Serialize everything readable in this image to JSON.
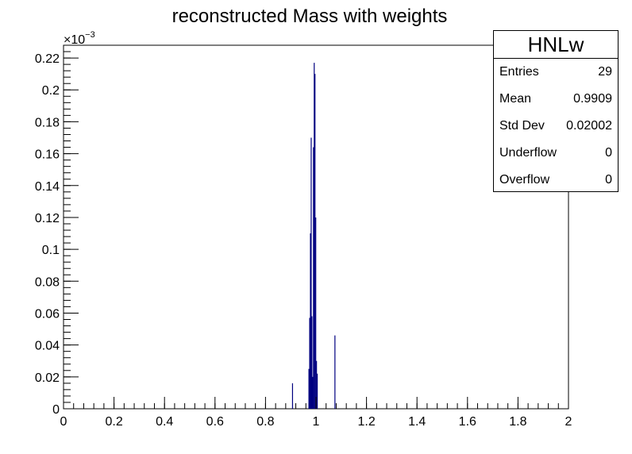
{
  "chart_data": {
    "type": "bar",
    "title": "reconstructed Mass with weights",
    "xlabel": "",
    "ylabel": "",
    "y_exponent_label": "×10",
    "y_exponent_power": "−3",
    "xlim": [
      0,
      2
    ],
    "ylim": [
      0,
      0.228
    ],
    "bar_color": "#000080",
    "x_ticks": [
      0,
      0.2,
      0.4,
      0.6,
      0.8,
      1,
      1.2,
      1.4,
      1.6,
      1.8,
      2
    ],
    "x_tick_labels": [
      "0",
      "0.2",
      "0.4",
      "0.6",
      "0.8",
      "1",
      "1.2",
      "1.4",
      "1.6",
      "1.8",
      "2"
    ],
    "y_ticks": [
      0,
      0.02,
      0.04,
      0.06,
      0.08,
      0.1,
      0.12,
      0.14,
      0.16,
      0.18,
      0.2,
      0.22
    ],
    "y_tick_labels": [
      "0",
      "0.02",
      "0.04",
      "0.06",
      "0.08",
      "0.1",
      "0.12",
      "0.14",
      "0.16",
      "0.18",
      "0.2",
      "0.22"
    ],
    "points": [
      {
        "x": 0.907,
        "y": 0.016
      },
      {
        "x": 0.972,
        "y": 0.025
      },
      {
        "x": 0.975,
        "y": 0.057
      },
      {
        "x": 0.978,
        "y": 0.11
      },
      {
        "x": 0.981,
        "y": 0.17
      },
      {
        "x": 0.984,
        "y": 0.058
      },
      {
        "x": 0.987,
        "y": 0.02
      },
      {
        "x": 0.99,
        "y": 0.164
      },
      {
        "x": 0.993,
        "y": 0.217
      },
      {
        "x": 0.996,
        "y": 0.21
      },
      {
        "x": 0.999,
        "y": 0.12
      },
      {
        "x": 1.002,
        "y": 0.03
      },
      {
        "x": 1.005,
        "y": 0.022
      },
      {
        "x": 1.075,
        "y": 0.046
      }
    ]
  },
  "stats": {
    "title": "HNLw",
    "rows": [
      {
        "label": "Entries",
        "value": "29"
      },
      {
        "label": "Mean",
        "value": "0.9909"
      },
      {
        "label": "Std Dev",
        "value": "0.02002"
      },
      {
        "label": "Underflow",
        "value": "0"
      },
      {
        "label": "Overflow",
        "value": "0"
      }
    ]
  }
}
